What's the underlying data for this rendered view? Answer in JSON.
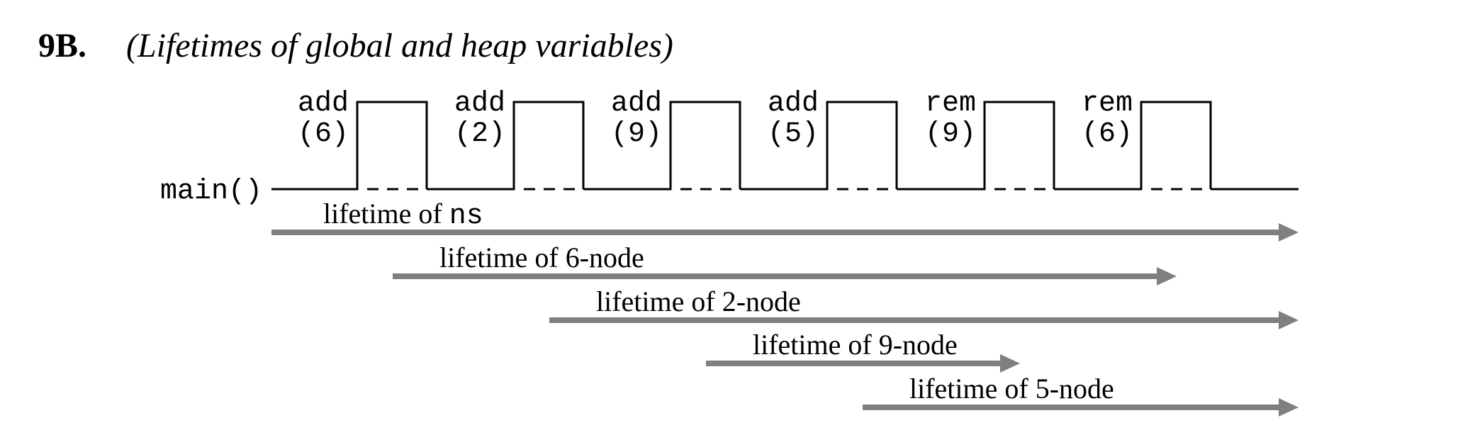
{
  "heading": {
    "number": "9B.",
    "text": "(Lifetimes of global and heap variables)"
  },
  "main_label": "main()",
  "calls": [
    {
      "name": "add",
      "arg": "(6)"
    },
    {
      "name": "add",
      "arg": "(2)"
    },
    {
      "name": "add",
      "arg": "(9)"
    },
    {
      "name": "add",
      "arg": "(5)"
    },
    {
      "name": "rem",
      "arg": "(9)"
    },
    {
      "name": "rem",
      "arg": "(6)"
    }
  ],
  "lifetimes": [
    {
      "prefix": "lifetime of ",
      "code": "ns",
      "start": "main-start",
      "end": "main-end"
    },
    {
      "prefix": "lifetime of 6-node",
      "code": "",
      "start": "call-1",
      "end": "call-6"
    },
    {
      "prefix": "lifetime of 2-node",
      "code": "",
      "start": "call-2",
      "end": "main-end"
    },
    {
      "prefix": "lifetime of 9-node",
      "code": "",
      "start": "call-3",
      "end": "call-5"
    },
    {
      "prefix": "lifetime of 5-node",
      "code": "",
      "start": "call-4",
      "end": "main-end"
    }
  ],
  "colors": {
    "lifetime_arrow": "#7f7f7f",
    "timeline": "#000000"
  }
}
